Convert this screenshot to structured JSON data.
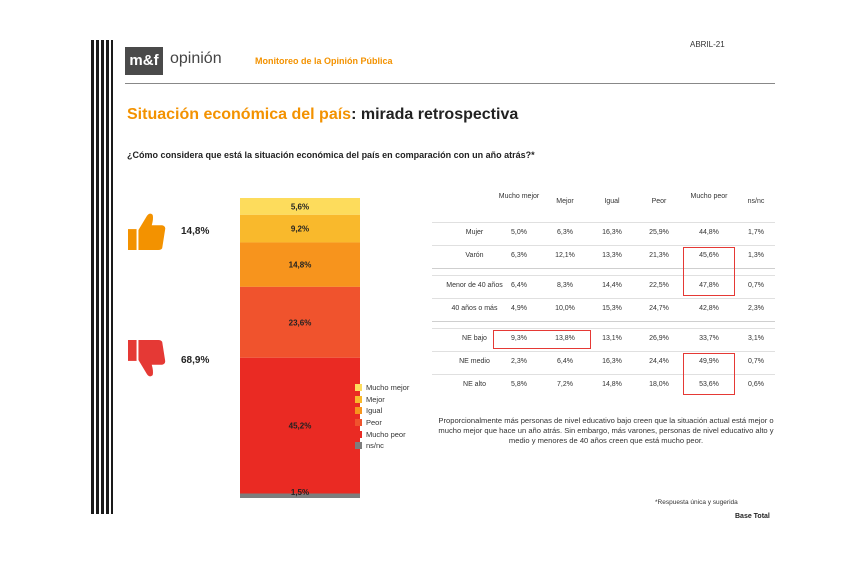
{
  "header": {
    "logo": "m&f",
    "brand": "opinión",
    "subtitle": "Monitoreo de la Opinión Pública",
    "date": "ABRIL-21"
  },
  "title": {
    "accent": "Situación económica del país",
    "rest": ": mirada retrospectiva"
  },
  "question": "¿Cómo considera que está la situación económica del país en comparación con un año atrás?*",
  "summary": {
    "positive": "14,8%",
    "negative": "68,9%"
  },
  "colors": {
    "mucho_mejor": "#fddc5c",
    "mejor": "#f9b92c",
    "igual": "#f7941d",
    "peor": "#f0532d",
    "mucho_peor": "#ea2a23",
    "nsnc": "#7d7d7d",
    "accent": "#f39200",
    "highlight": "#e53935"
  },
  "chart_data": {
    "type": "bar",
    "stacked": true,
    "categories": [
      "Total"
    ],
    "series": [
      {
        "name": "Mucho mejor",
        "values": [
          5.6
        ],
        "label": "5,6%"
      },
      {
        "name": "Mejor",
        "values": [
          9.2
        ],
        "label": "9,2%"
      },
      {
        "name": "Igual",
        "values": [
          14.8
        ],
        "label": "14,8%"
      },
      {
        "name": "Peor",
        "values": [
          23.6
        ],
        "label": "23,6%"
      },
      {
        "name": "Mucho peor",
        "values": [
          45.2
        ],
        "label": "45,2%"
      },
      {
        "name": "ns/nc",
        "values": [
          1.5
        ],
        "label": "1,5%"
      }
    ],
    "ylim": [
      0,
      100
    ],
    "legend_position": "right"
  },
  "legend": [
    "Mucho mejor",
    "Mejor",
    "Igual",
    "Peor",
    "Mucho peor",
    "ns/nc"
  ],
  "table": {
    "columns": [
      "Mucho mejor",
      "Mejor",
      "Igual",
      "Peor",
      "Mucho peor",
      "ns/nc"
    ],
    "groups": [
      {
        "rows": [
          {
            "label": "Mujer",
            "values": [
              "5,0%",
              "6,3%",
              "16,3%",
              "25,9%",
              "44,8%",
              "1,7%"
            ]
          },
          {
            "label": "Varón",
            "values": [
              "6,3%",
              "12,1%",
              "13,3%",
              "21,3%",
              "45,6%",
              "1,3%"
            ]
          }
        ]
      },
      {
        "rows": [
          {
            "label": "Menor de 40 años",
            "values": [
              "6,4%",
              "8,3%",
              "14,4%",
              "22,5%",
              "47,8%",
              "0,7%"
            ]
          },
          {
            "label": "40 años o más",
            "values": [
              "4,9%",
              "10,0%",
              "15,3%",
              "24,7%",
              "42,8%",
              "2,3%"
            ]
          }
        ]
      },
      {
        "rows": [
          {
            "label": "NE bajo",
            "values": [
              "9,3%",
              "13,8%",
              "13,1%",
              "26,9%",
              "33,7%",
              "3,1%"
            ]
          },
          {
            "label": "NE medio",
            "values": [
              "2,3%",
              "6,4%",
              "16,3%",
              "24,4%",
              "49,9%",
              "0,7%"
            ]
          },
          {
            "label": "NE alto",
            "values": [
              "5,8%",
              "7,2%",
              "14,8%",
              "18,0%",
              "53,6%",
              "0,6%"
            ]
          }
        ]
      }
    ]
  },
  "note": "Proporcionalmente más personas de nivel educativo bajo creen que la situación actual está mejor o mucho mejor que hace un año atrás. Sin embargo, más varones, personas de nivel educativo alto y medio y menores de 40 años creen que está mucho peor.",
  "footnote": "*Respuesta única y sugerida",
  "base": "Base Total"
}
